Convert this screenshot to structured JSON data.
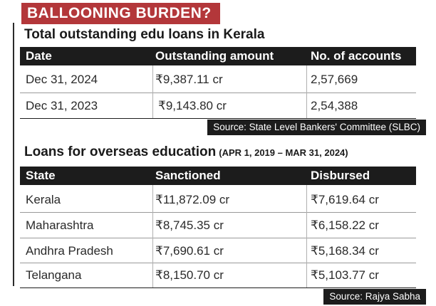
{
  "tag": "BALLOONING BURDEN?",
  "table1": {
    "title": "Total outstanding edu loans in Kerala",
    "headers": [
      "Date",
      "Outstanding amount",
      "No. of accounts"
    ],
    "rows": [
      [
        "Dec 31, 2024",
        "₹9,387.11 cr",
        "2,57,669"
      ],
      [
        "Dec 31, 2023",
        "₹9,143.80 cr",
        "2,54,388"
      ]
    ],
    "source": "Source: State Level Bankers' Committee (SLBC)"
  },
  "table2": {
    "title": "Loans for overseas education",
    "subtitle": "(APR 1, 2019 – MAR 31, 2024)",
    "headers": [
      "State",
      "Sanctioned",
      "Disbursed"
    ],
    "rows": [
      [
        "Kerala",
        "₹11,872.09 cr",
        "₹7,619.64 cr"
      ],
      [
        "Maharashtra",
        "₹8,745.35 cr",
        "₹6,158.22 cr"
      ],
      [
        "Andhra Pradesh",
        "₹7,690.61 cr",
        "₹5,168.34 cr"
      ],
      [
        "Telangana",
        "₹8,150.70 cr",
        "₹5,103.77 cr"
      ]
    ],
    "source": "Source: Rajya Sabha"
  },
  "colors": {
    "tag_background": "#b3373a",
    "header_background": "#1c1c1c"
  }
}
